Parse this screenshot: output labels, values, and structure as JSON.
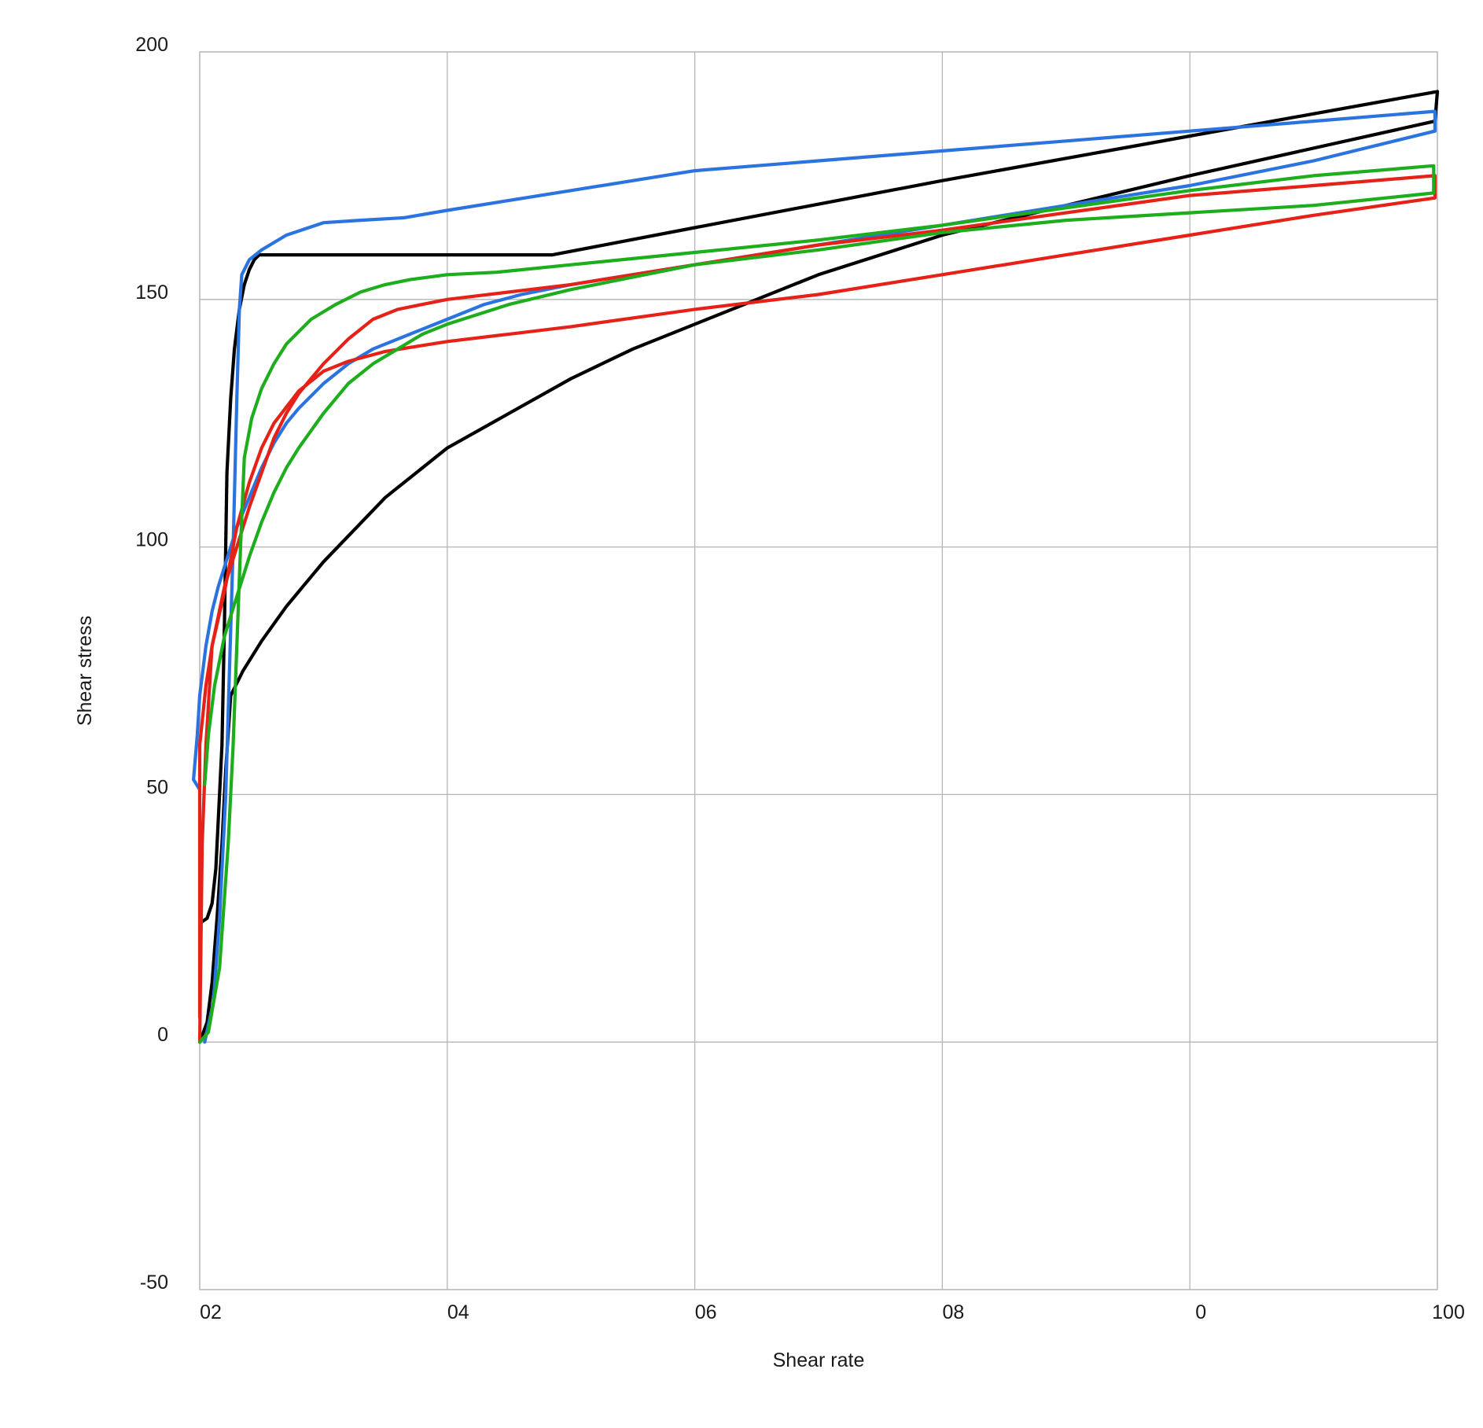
{
  "chart_data": {
    "type": "line",
    "title": "",
    "xlabel": "Shear rate",
    "ylabel": "Shear stress",
    "xlim": [
      0,
      100
    ],
    "ylim": [
      -50,
      200
    ],
    "grid": true,
    "legend": "none",
    "x_tick_labels": [
      "02",
      "04",
      "06",
      "08",
      "0",
      "100"
    ],
    "y_tick_labels": [
      "-50",
      "0",
      "50",
      "100",
      "150",
      "200"
    ],
    "y_ticks": [
      -50,
      0,
      50,
      100,
      150,
      200
    ],
    "series": [
      {
        "color": "#000000",
        "segments": [
          [
            [
              0,
              24
            ],
            [
              0.6,
              25
            ],
            [
              1,
              28
            ],
            [
              1.3,
              35
            ],
            [
              1.6,
              50
            ],
            [
              1.8,
              60
            ],
            [
              2.0,
              85
            ],
            [
              2.2,
              115
            ],
            [
              2.5,
              130
            ],
            [
              2.8,
              140
            ],
            [
              3.2,
              148
            ],
            [
              3.6,
              153
            ],
            [
              4.0,
              156
            ],
            [
              4.4,
              158
            ],
            [
              4.8,
              159
            ],
            [
              5,
              159
            ],
            [
              10,
              159
            ],
            [
              15,
              159
            ],
            [
              20,
              159
            ],
            [
              28.5,
              159
            ],
            [
              40,
              164.5
            ],
            [
              60,
              174
            ],
            [
              80,
              183
            ],
            [
              100,
              192
            ],
            [
              99.8,
              186
            ]
          ],
          [
            [
              99.8,
              186
            ],
            [
              80,
              175
            ],
            [
              60,
              163
            ],
            [
              50,
              155
            ],
            [
              40,
              145
            ],
            [
              35,
              140
            ],
            [
              30,
              134
            ],
            [
              25,
              127
            ],
            [
              20,
              120
            ],
            [
              15,
              110
            ],
            [
              10,
              97
            ],
            [
              7,
              88
            ],
            [
              5,
              81
            ],
            [
              3.5,
              75
            ],
            [
              2.5,
              70
            ],
            [
              2.1,
              55
            ],
            [
              1.8,
              40
            ],
            [
              1.4,
              25
            ],
            [
              1.0,
              12
            ],
            [
              0.6,
              4
            ],
            [
              0,
              0
            ]
          ]
        ]
      },
      {
        "color": "#2b74e0",
        "segments": [
          [
            [
              0,
              51
            ],
            [
              -0.5,
              53
            ],
            [
              -0.4,
              56
            ],
            [
              -0.2,
              62
            ],
            [
              0,
              70
            ],
            [
              0.5,
              80
            ],
            [
              1.0,
              87
            ],
            [
              1.5,
              92
            ],
            [
              2.0,
              96
            ],
            [
              2.5,
              100
            ],
            [
              3,
              104
            ],
            [
              4,
              110
            ],
            [
              5,
              116
            ],
            [
              6,
              121
            ],
            [
              7,
              125
            ],
            [
              8,
              128
            ],
            [
              10,
              133
            ],
            [
              12,
              137
            ],
            [
              14,
              140
            ],
            [
              16,
              142
            ],
            [
              18,
              144
            ],
            [
              20,
              146
            ],
            [
              23,
              149
            ],
            [
              26,
              151
            ],
            [
              30,
              153
            ],
            [
              40,
              157
            ],
            [
              50,
              161
            ],
            [
              60,
              165
            ],
            [
              70,
              169
            ],
            [
              80,
              173
            ],
            [
              90,
              178
            ],
            [
              99.8,
              184
            ]
          ],
          [
            [
              99.8,
              184
            ],
            [
              99.8,
              188
            ],
            [
              90,
              186
            ],
            [
              80,
              184
            ],
            [
              70,
              182
            ],
            [
              60,
              180
            ],
            [
              50,
              178
            ],
            [
              40,
              176
            ],
            [
              30,
              172
            ],
            [
              20,
              168
            ],
            [
              16.5,
              166.5
            ],
            [
              13,
              166
            ],
            [
              10,
              165.5
            ],
            [
              7,
              163
            ],
            [
              5,
              160
            ],
            [
              4,
              158
            ],
            [
              3.4,
              155
            ],
            [
              3.2,
              148
            ],
            [
              3.0,
              130
            ],
            [
              2.7,
              100
            ],
            [
              2.4,
              75
            ],
            [
              2.1,
              50
            ],
            [
              1.6,
              25
            ],
            [
              1.1,
              8
            ],
            [
              0.4,
              0
            ]
          ]
        ]
      },
      {
        "color": "#e62117",
        "segments": [
          [
            [
              0,
              0
            ],
            [
              0.2,
              40
            ],
            [
              0.5,
              60
            ],
            [
              1.0,
              80
            ],
            [
              2,
              92
            ],
            [
              3,
              100
            ],
            [
              4,
              108
            ],
            [
              5,
              115
            ],
            [
              6,
              122
            ],
            [
              7,
              127
            ],
            [
              8,
              131
            ],
            [
              10,
              137
            ],
            [
              12,
              142
            ],
            [
              14,
              146
            ],
            [
              16,
              148
            ],
            [
              18,
              149
            ],
            [
              20,
              150
            ],
            [
              30,
              153
            ],
            [
              40,
              157
            ],
            [
              50,
              161
            ],
            [
              60,
              164
            ],
            [
              70,
              167.5
            ],
            [
              80,
              171
            ],
            [
              90,
              173
            ],
            [
              99.8,
              175
            ]
          ],
          [
            [
              99.8,
              175
            ],
            [
              99.8,
              170.5
            ],
            [
              90,
              167
            ],
            [
              80,
              163
            ],
            [
              70,
              159
            ],
            [
              60,
              155
            ],
            [
              50,
              151
            ],
            [
              40,
              148
            ],
            [
              30,
              144.5
            ],
            [
              25,
              143
            ],
            [
              20,
              141.5
            ],
            [
              15,
              139.5
            ],
            [
              12,
              137.5
            ],
            [
              10,
              135.5
            ],
            [
              8,
              131.5
            ],
            [
              6,
              125
            ],
            [
              5,
              120
            ],
            [
              4,
              113
            ],
            [
              3,
              104
            ],
            [
              2,
              91
            ],
            [
              1,
              80
            ],
            [
              0.5,
              72
            ],
            [
              0,
              60
            ],
            [
              0,
              55
            ],
            [
              0,
              40
            ],
            [
              0,
              20
            ],
            [
              0,
              5
            ]
          ]
        ]
      },
      {
        "color": "#1dad1d",
        "segments": [
          [
            [
              0.4,
              52
            ],
            [
              0.7,
              62
            ],
            [
              1.2,
              72
            ],
            [
              2,
              82
            ],
            [
              3,
              90
            ],
            [
              4,
              98
            ],
            [
              5,
              105
            ],
            [
              6,
              111
            ],
            [
              7,
              116
            ],
            [
              8,
              120
            ],
            [
              10,
              127
            ],
            [
              12,
              133
            ],
            [
              14,
              137
            ],
            [
              16,
              140
            ],
            [
              18,
              143
            ],
            [
              20,
              145
            ],
            [
              25,
              149
            ],
            [
              30,
              152
            ],
            [
              40,
              157
            ],
            [
              50,
              160
            ],
            [
              60,
              163.5
            ],
            [
              70,
              166
            ],
            [
              80,
              167.5
            ],
            [
              90,
              169
            ],
            [
              99.7,
              171.5
            ]
          ],
          [
            [
              99.7,
              171.5
            ],
            [
              99.7,
              177
            ],
            [
              90,
              175
            ],
            [
              80,
              172
            ],
            [
              70,
              168.5
            ],
            [
              60,
              165
            ],
            [
              50,
              162
            ],
            [
              40,
              159.5
            ],
            [
              30,
              157
            ],
            [
              24,
              155.5
            ],
            [
              20,
              155
            ],
            [
              17,
              154
            ],
            [
              15,
              153
            ],
            [
              13,
              151.5
            ],
            [
              11,
              149
            ],
            [
              9,
              146
            ],
            [
              7,
              141
            ],
            [
              6,
              137
            ],
            [
              5,
              132
            ],
            [
              4.2,
              126
            ],
            [
              3.6,
              118
            ],
            [
              3.3,
              100
            ],
            [
              3.0,
              80
            ],
            [
              2.7,
              60
            ],
            [
              2.3,
              40
            ],
            [
              1.6,
              15
            ],
            [
              0.7,
              2
            ],
            [
              0,
              0
            ]
          ]
        ]
      }
    ]
  }
}
